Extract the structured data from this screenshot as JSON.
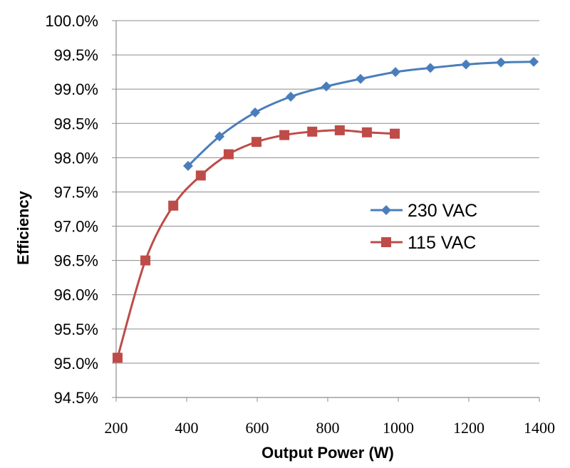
{
  "chart_data": {
    "type": "line",
    "title": "",
    "xlabel": "Output Power (W)",
    "ylabel": "Efficiency",
    "xlim": [
      200,
      1400
    ],
    "ylim": [
      94.5,
      100.0
    ],
    "x_ticks": [
      "200",
      "400",
      "600",
      "800",
      "1000",
      "1200",
      "1400"
    ],
    "y_ticks": [
      "94.5%",
      "95.0%",
      "95.5%",
      "96.0%",
      "96.5%",
      "97.0%",
      "97.5%",
      "98.0%",
      "98.5%",
      "99.0%",
      "99.5%",
      "100.0%"
    ],
    "grid": "horizontal",
    "legend_position": "right-middle",
    "series": [
      {
        "name": "230 VAC",
        "color": "#4a7ebb",
        "marker": "diamond",
        "x": [
          404,
          493,
          594,
          695,
          796,
          893,
          992,
          1091,
          1192,
          1291,
          1384
        ],
        "y": [
          97.88,
          98.31,
          98.66,
          98.89,
          99.04,
          99.15,
          99.25,
          99.31,
          99.36,
          99.39,
          99.4
        ]
      },
      {
        "name": "115 VAC",
        "color": "#be4b48",
        "marker": "square",
        "x": [
          204,
          283,
          362,
          440,
          519,
          598,
          677,
          756,
          834,
          911,
          990
        ],
        "y": [
          95.08,
          96.5,
          97.3,
          97.74,
          98.05,
          98.23,
          98.33,
          98.38,
          98.4,
          98.37,
          98.35
        ]
      }
    ]
  }
}
